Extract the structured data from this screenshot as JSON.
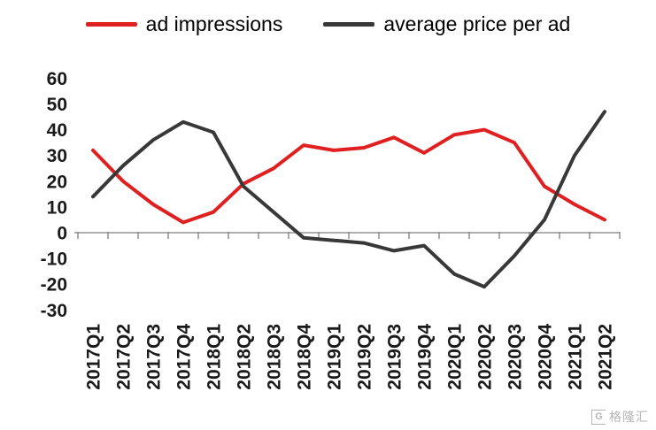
{
  "watermark": {
    "icon": "G",
    "text": "格隆汇"
  },
  "chart_data": {
    "type": "line",
    "title": "",
    "xlabel": "",
    "ylabel": "",
    "categories": [
      "2017Q1",
      "2017Q2",
      "2017Q3",
      "2017Q4",
      "2018Q1",
      "2018Q2",
      "2018Q3",
      "2018Q4",
      "2019Q1",
      "2019Q2",
      "2019Q3",
      "2019Q4",
      "2020Q1",
      "2020Q2",
      "2020Q3",
      "2020Q4",
      "2021Q1",
      "2021Q2"
    ],
    "series": [
      {
        "name": "ad impressions",
        "color": "#e02020",
        "values": [
          32,
          20,
          11,
          4,
          8,
          19,
          25,
          34,
          32,
          33,
          37,
          31,
          38,
          40,
          35,
          18,
          11,
          5
        ]
      },
      {
        "name": "average price per ad",
        "color": "#383838",
        "values": [
          14,
          26,
          36,
          43,
          39,
          18,
          8,
          -2,
          -3,
          -4,
          -7,
          -5,
          -16,
          -21,
          -9,
          5,
          30,
          47
        ]
      }
    ],
    "ylim": [
      -30,
      60
    ],
    "yticks": [
      60,
      50,
      40,
      30,
      20,
      10,
      0,
      -10,
      -20,
      -30
    ],
    "grid": false,
    "legend_position": "top",
    "axis_color": "#7f7f7f"
  }
}
